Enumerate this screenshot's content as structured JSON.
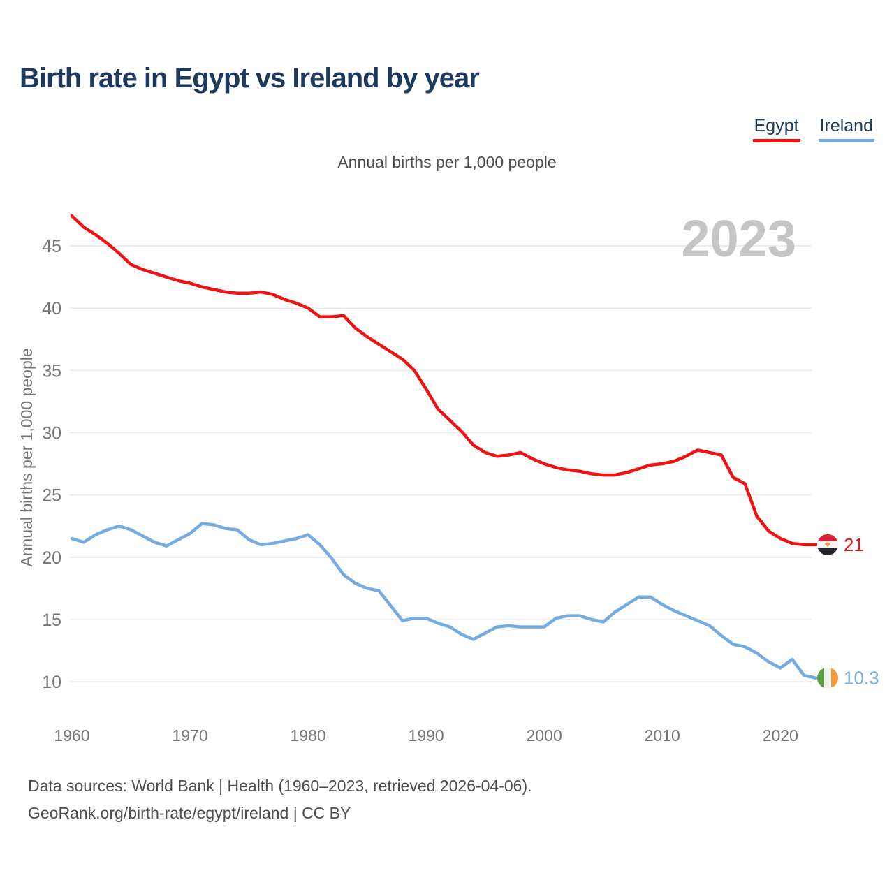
{
  "header": {
    "title": "Birth rate in Egypt vs Ireland by year"
  },
  "legend": {
    "items": [
      {
        "label": "Egypt",
        "color": "#ef1212"
      },
      {
        "label": "Ireland",
        "color": "#74abe0"
      }
    ]
  },
  "chart": {
    "subtitle": "Annual births per 1,000 people",
    "watermark": "2023"
  },
  "footer": {
    "line1": "Data sources: World Bank | Health (1960–2023, retrieved 2026-04-06).",
    "line2": "GeoRank.org/birth-rate/egypt/ireland | CC BY"
  },
  "chart_data": {
    "type": "line",
    "title": "Birth rate in Egypt vs Ireland by year",
    "subtitle": "Annual births per 1,000 people",
    "xlabel": "",
    "ylabel": "Annual births per 1,000 people",
    "grid": "horizontal",
    "legend_position": "top-right",
    "watermark": "2023",
    "x_ticks": [
      1960,
      1970,
      1980,
      1990,
      2000,
      2010,
      2020
    ],
    "y_ticks": [
      10,
      15,
      20,
      25,
      30,
      35,
      40,
      45
    ],
    "ylim": [
      8.5,
      48.5
    ],
    "years": [
      1960,
      1961,
      1962,
      1963,
      1964,
      1965,
      1966,
      1967,
      1968,
      1969,
      1970,
      1971,
      1972,
      1973,
      1974,
      1975,
      1976,
      1977,
      1978,
      1979,
      1980,
      1981,
      1982,
      1983,
      1984,
      1985,
      1986,
      1987,
      1988,
      1989,
      1990,
      1991,
      1992,
      1993,
      1994,
      1995,
      1996,
      1997,
      1998,
      1999,
      2000,
      2001,
      2002,
      2003,
      2004,
      2005,
      2006,
      2007,
      2008,
      2009,
      2010,
      2011,
      2012,
      2013,
      2014,
      2015,
      2016,
      2017,
      2018,
      2019,
      2020,
      2021,
      2022,
      2023
    ],
    "series": [
      {
        "name": "Egypt",
        "color": "#ef1212",
        "end_label": "21",
        "flag": "egypt-flag",
        "flag_colors": {
          "red": "#d8243c",
          "white": "#f5f5f5",
          "black": "#23232b",
          "eagle": "#eda338"
        },
        "values": [
          47.4,
          46.5,
          45.9,
          45.2,
          44.4,
          43.5,
          43.1,
          42.8,
          42.5,
          42.2,
          42.0,
          41.7,
          41.5,
          41.3,
          41.2,
          41.2,
          41.3,
          41.1,
          40.7,
          40.4,
          40.0,
          39.3,
          39.3,
          39.4,
          38.4,
          37.7,
          37.1,
          36.5,
          35.9,
          35.0,
          33.5,
          31.9,
          31.0,
          30.1,
          29.0,
          28.4,
          28.1,
          28.2,
          28.4,
          27.9,
          27.5,
          27.2,
          27.0,
          26.9,
          26.7,
          26.6,
          26.6,
          26.8,
          27.1,
          27.4,
          27.5,
          27.7,
          28.1,
          28.6,
          28.4,
          28.2,
          26.4,
          25.9,
          23.3,
          22.1,
          21.5,
          21.1,
          21.0,
          21.0
        ]
      },
      {
        "name": "Ireland",
        "color": "#74abe0",
        "end_label": "10.3",
        "flag": "ireland-flag",
        "flag_colors": {
          "green": "#5d9e47",
          "white": "#f2f2ef",
          "orange": "#f09b3c"
        },
        "values": [
          21.5,
          21.2,
          21.8,
          22.2,
          22.5,
          22.2,
          21.7,
          21.2,
          20.9,
          21.4,
          21.9,
          22.7,
          22.6,
          22.3,
          22.2,
          21.4,
          21.0,
          21.1,
          21.3,
          21.5,
          21.8,
          21.0,
          19.9,
          18.6,
          17.9,
          17.5,
          17.3,
          16.1,
          14.9,
          15.1,
          15.1,
          14.7,
          14.4,
          13.8,
          13.4,
          13.9,
          14.4,
          14.5,
          14.4,
          14.4,
          14.4,
          15.1,
          15.3,
          15.3,
          15.0,
          14.8,
          15.6,
          16.2,
          16.8,
          16.8,
          16.2,
          15.7,
          15.3,
          14.9,
          14.5,
          13.7,
          13.0,
          12.8,
          12.3,
          11.6,
          11.1,
          11.8,
          10.5,
          10.3
        ]
      }
    ]
  }
}
